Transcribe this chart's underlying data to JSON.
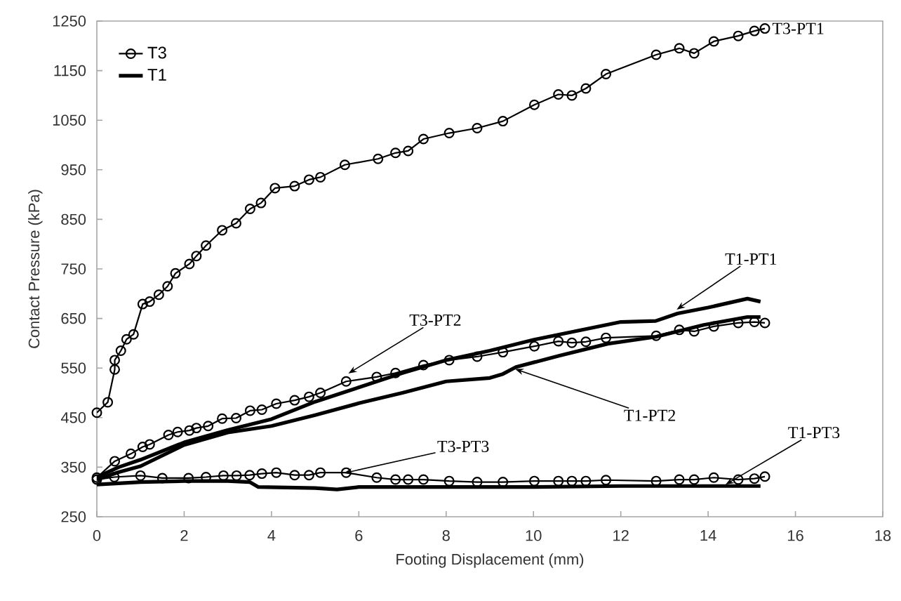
{
  "chart_data": {
    "type": "line",
    "xlabel": "Footing Displacement (mm)",
    "ylabel": "Contact Pressure (kPa)",
    "xlim": [
      0,
      18
    ],
    "xticks": [
      0,
      2,
      4,
      6,
      8,
      10,
      12,
      14,
      16,
      18
    ],
    "ylim": [
      250,
      1250
    ],
    "yticks": [
      250,
      350,
      450,
      550,
      650,
      750,
      850,
      950,
      1050,
      1150,
      1250
    ],
    "grid": false,
    "legend": "top left",
    "series": [
      {
        "name": "T3",
        "color": "#000000",
        "marker": "circle",
        "x": [
          0,
          0.25,
          0.41,
          0.41,
          0.55,
          0.68,
          0.84,
          1.05,
          1.21,
          1.42,
          1.62,
          1.8,
          2.12,
          2.28,
          2.5,
          2.87,
          3.19,
          3.51,
          3.76,
          4.08,
          4.53,
          4.86,
          5.12,
          5.68,
          6.44,
          6.84,
          7.13,
          7.48,
          8.07,
          8.71,
          9.3,
          10.02,
          10.57,
          10.88,
          11.2,
          11.66,
          12.81,
          13.34,
          13.68,
          14.13,
          14.69,
          15.06,
          15.3
        ],
        "values": [
          460,
          481,
          547,
          566,
          585,
          608,
          618,
          679,
          684,
          698,
          715,
          741,
          760,
          776,
          797,
          828,
          842,
          871,
          883,
          913,
          917,
          930,
          935,
          960,
          972,
          984,
          988,
          1012,
          1024,
          1034,
          1048,
          1081,
          1102,
          1100,
          1114,
          1143,
          1182,
          1195,
          1185,
          1209,
          1220,
          1230,
          1235
        ]
      },
      {
        "color": "#000000",
        "marker": "circle",
        "x": [
          0,
          0.41,
          0.78,
          1.05,
          1.21,
          1.64,
          1.85,
          2.12,
          2.28,
          2.55,
          2.87,
          3.19,
          3.51,
          3.78,
          4.11,
          4.53,
          4.86,
          5.12,
          5.71,
          6.41,
          6.84,
          7.48,
          8.07,
          8.71,
          9.3,
          10.02,
          10.57,
          10.88,
          11.2,
          11.66,
          12.81,
          13.34,
          13.68,
          14.13,
          14.69,
          15.06,
          15.3
        ],
        "values": [
          329,
          362,
          377,
          391,
          396,
          415,
          421,
          424,
          429,
          433,
          448,
          449,
          464,
          466,
          478,
          485,
          492,
          500,
          523,
          532,
          540,
          556,
          566,
          573,
          582,
          594,
          604,
          601,
          603,
          611,
          615,
          627,
          624,
          634,
          641,
          643,
          641
        ]
      },
      {
        "color": "#000000",
        "marker": "circle",
        "x": [
          0,
          0.4,
          1.0,
          1.5,
          2.1,
          2.5,
          2.9,
          3.2,
          3.5,
          3.78,
          4.11,
          4.53,
          4.86,
          5.12,
          5.71,
          6.41,
          6.84,
          7.13,
          7.48,
          8.07,
          8.71,
          9.3,
          10.02,
          10.57,
          10.88,
          11.2,
          11.66,
          12.81,
          13.34,
          13.68,
          14.13,
          14.69,
          15.06,
          15.3
        ],
        "values": [
          325,
          330,
          333,
          328,
          328,
          330,
          333,
          333,
          334,
          337,
          339,
          334,
          334,
          339,
          339,
          329,
          325,
          325,
          325,
          322,
          320,
          320,
          322,
          322,
          322,
          322,
          324,
          322,
          325,
          325,
          329,
          325,
          327,
          331
        ]
      },
      {
        "name": "T1",
        "color": "#000000",
        "marker": "none",
        "x": [
          0,
          0.5,
          1,
          2,
          3,
          4,
          5,
          6,
          7,
          8,
          9,
          10,
          11,
          12,
          12.8,
          13.3,
          14,
          14.9,
          15.2
        ],
        "values": [
          330,
          350,
          365,
          400,
          425,
          447,
          482,
          511,
          540,
          566,
          585,
          607,
          625,
          643,
          645,
          660,
          672,
          690,
          684
        ]
      },
      {
        "color": "#000000",
        "marker": "none",
        "x": [
          0,
          0.5,
          1,
          2,
          3,
          4,
          5,
          6,
          7,
          8,
          9,
          9.3,
          9.6,
          10.6,
          11.7,
          12.8,
          13.9,
          14.9,
          15.2
        ],
        "values": [
          325,
          340,
          352,
          395,
          420,
          433,
          455,
          479,
          500,
          523,
          530,
          538,
          552,
          575,
          599,
          613,
          637,
          653,
          653
        ]
      },
      {
        "color": "#000000",
        "marker": "none",
        "x": [
          0,
          1,
          2,
          3,
          3.5,
          3.7,
          5,
          5.5,
          6,
          8,
          10,
          12,
          15.2
        ],
        "values": [
          315,
          320,
          322,
          322,
          320,
          310,
          308,
          305,
          310,
          310,
          310,
          312,
          312
        ]
      }
    ],
    "annotations": [
      {
        "text": "T3-PT1",
        "x": 15.3,
        "y": 1235
      },
      {
        "text": "T1-PT1",
        "x": 13.28,
        "y": 668
      },
      {
        "text": "T3-PT2",
        "x": 5.76,
        "y": 539
      },
      {
        "text": "T1-PT2",
        "x": 9.58,
        "y": 548
      },
      {
        "text": "T3-PT3",
        "x": 5.66,
        "y": 338
      },
      {
        "text": "T1-PT3",
        "x": 14.4,
        "y": 315
      }
    ]
  }
}
